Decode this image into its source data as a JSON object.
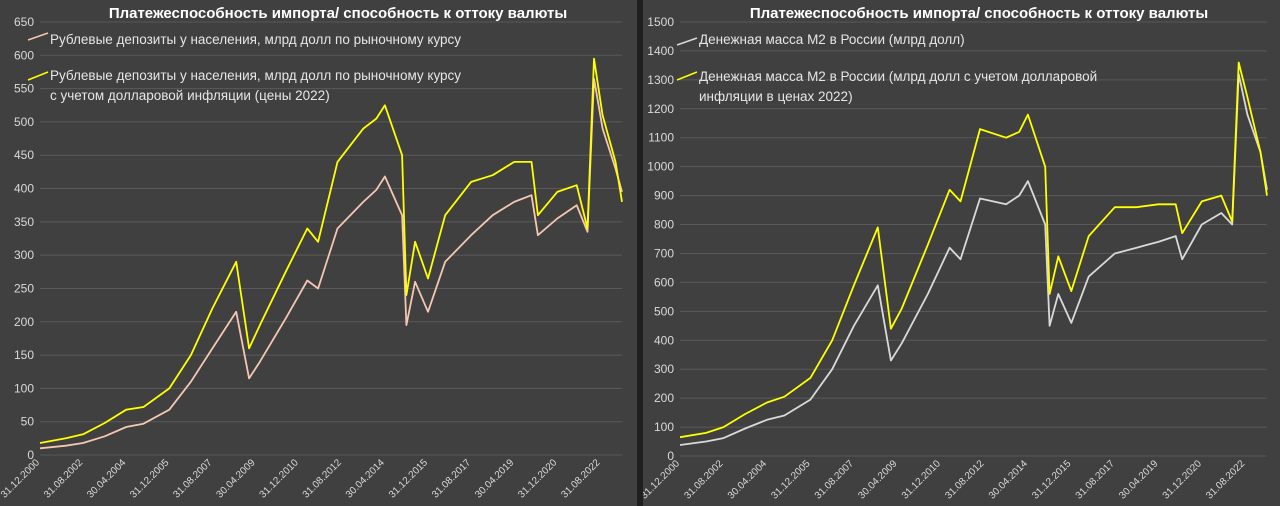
{
  "chart_data": [
    {
      "type": "line",
      "title": "Платежеспособность импорта/ способность к оттоку валюты",
      "xlabel": "",
      "ylabel": "",
      "ylim": [
        0,
        650
      ],
      "yticks": [
        0,
        50,
        100,
        150,
        200,
        250,
        300,
        350,
        400,
        450,
        500,
        550,
        600,
        650
      ],
      "x_tick_labels": [
        "31.12.2000",
        "31.08.2002",
        "30.04.2004",
        "31.12.2005",
        "31.08.2007",
        "30.04.2009",
        "31.12.2010",
        "31.08.2012",
        "30.04.2014",
        "31.12.2015",
        "31.08.2017",
        "30.04.2019",
        "31.12.2020",
        "31.08.2022"
      ],
      "grid": true,
      "legend_position": "top-left",
      "x": [
        "2000-12",
        "2001-12",
        "2002-08",
        "2003-06",
        "2004-04",
        "2004-12",
        "2005-12",
        "2006-10",
        "2007-08",
        "2008-07",
        "2009-01",
        "2009-06",
        "2010-06",
        "2011-04",
        "2011-09",
        "2012-06",
        "2013-06",
        "2013-12",
        "2014-04",
        "2014-12",
        "2015-02",
        "2015-06",
        "2015-12",
        "2016-08",
        "2017-08",
        "2018-06",
        "2019-04",
        "2019-12",
        "2020-03",
        "2020-12",
        "2021-09",
        "2022-02",
        "2022-05",
        "2022-09",
        "2023-03",
        "2023-06"
      ],
      "series": [
        {
          "name": "Рублевые депозиты у населения, млрд долл по рыночному курсу",
          "color": "#f4c7b0",
          "values": [
            10,
            14,
            18,
            28,
            42,
            47,
            68,
            110,
            160,
            215,
            115,
            140,
            205,
            262,
            250,
            340,
            380,
            398,
            418,
            360,
            195,
            260,
            215,
            290,
            330,
            360,
            380,
            390,
            330,
            355,
            375,
            335,
            565,
            490,
            430,
            395
          ]
        },
        {
          "name": "Рублевые депозиты у населения, млрд долл по рыночному курсу с учетом долларовой инфляции (цены 2022)",
          "color": "#ffff00",
          "values": [
            18,
            25,
            31,
            48,
            68,
            72,
            100,
            150,
            220,
            290,
            160,
            195,
            275,
            340,
            320,
            440,
            490,
            505,
            525,
            450,
            240,
            320,
            265,
            360,
            410,
            420,
            440,
            440,
            360,
            395,
            405,
            340,
            595,
            510,
            440,
            380
          ]
        }
      ]
    },
    {
      "type": "line",
      "title": "Платежеспособность импорта/ способность к оттоку валюты",
      "xlabel": "",
      "ylabel": "",
      "ylim": [
        0,
        1500
      ],
      "yticks": [
        0,
        100,
        200,
        300,
        400,
        500,
        600,
        700,
        800,
        900,
        1000,
        1100,
        1200,
        1300,
        1400,
        1500
      ],
      "x_tick_labels": [
        "31.12.2000",
        "31.08.2002",
        "30.04.2004",
        "31.12.2005",
        "31.08.2007",
        "30.04.2009",
        "31.12.2010",
        "31.08.2012",
        "30.04.2014",
        "31.12.2015",
        "31.08.2017",
        "30.04.2019",
        "31.12.2020",
        "31.08.2022"
      ],
      "grid": true,
      "legend_position": "top-left",
      "x": [
        "2000-12",
        "2001-12",
        "2002-08",
        "2003-06",
        "2004-04",
        "2004-12",
        "2005-12",
        "2006-10",
        "2007-08",
        "2008-07",
        "2009-01",
        "2009-06",
        "2010-06",
        "2011-04",
        "2011-09",
        "2012-06",
        "2013-06",
        "2013-12",
        "2014-04",
        "2014-12",
        "2015-02",
        "2015-06",
        "2015-12",
        "2016-08",
        "2017-08",
        "2018-06",
        "2019-04",
        "2019-12",
        "2020-03",
        "2020-12",
        "2021-09",
        "2022-02",
        "2022-05",
        "2022-09",
        "2023-03",
        "2023-06"
      ],
      "series": [
        {
          "name": "Денежная масса М2 в России (млрд долл)",
          "color": "#d9d9d9",
          "values": [
            38,
            50,
            62,
            95,
            125,
            140,
            195,
            300,
            450,
            590,
            330,
            390,
            560,
            720,
            680,
            890,
            870,
            900,
            950,
            800,
            450,
            560,
            460,
            620,
            700,
            720,
            740,
            760,
            680,
            800,
            840,
            800,
            1320,
            1180,
            1050,
            920
          ]
        },
        {
          "name": "Денежная масса М2 в России (млрд долл с учетом долларовой инфляции в ценах 2022)",
          "color": "#ffff00",
          "values": [
            65,
            80,
            100,
            145,
            185,
            205,
            270,
            400,
            590,
            790,
            440,
            510,
            730,
            920,
            880,
            1130,
            1100,
            1120,
            1180,
            1000,
            560,
            690,
            570,
            760,
            860,
            860,
            870,
            870,
            770,
            880,
            900,
            810,
            1360,
            1240,
            1050,
            900
          ]
        }
      ]
    }
  ]
}
